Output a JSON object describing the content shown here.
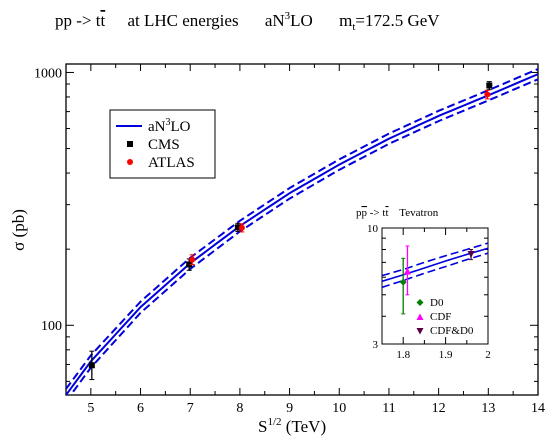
{
  "title": {
    "process": "pp -> t",
    "process_bar": "t",
    "energies": "at  LHC  energies",
    "order_pre": "aN",
    "order_sup": "3",
    "order_post": "LO",
    "mass_pre": "m",
    "mass_sub": "t",
    "mass_post": "=172.5 GeV"
  },
  "colors": {
    "theory": "#0000dd",
    "cms": "#000000",
    "atlas": "#ff0000",
    "d0": "#008000",
    "cdf": "#ff00ff",
    "cdfd0": "#550044"
  },
  "chart_data": [
    {
      "type": "line",
      "xlabel_pre": "S",
      "xlabel_sup": "1/2",
      "xlabel_post": " (TeV)",
      "ylabel": "σ (pb)",
      "xlim": [
        4.5,
        14
      ],
      "ylim": [
        53,
        1080
      ],
      "yscale": "log",
      "x_ticks": [
        5,
        6,
        7,
        8,
        9,
        10,
        11,
        12,
        13,
        14
      ],
      "x_tick_labels": [
        "5",
        "6",
        "7",
        "8",
        "9",
        "10",
        "11",
        "12",
        "13",
        "14"
      ],
      "y_ticks": [
        100,
        1000
      ],
      "y_tick_labels": [
        "100",
        "1000"
      ],
      "legend": {
        "position": "upper-left",
        "entries": [
          {
            "label_pre": "aN",
            "label_sup": "3",
            "label_post": "LO",
            "marker": "line"
          },
          {
            "label_pre": "CMS",
            "label_sup": "",
            "label_post": "",
            "marker": "square"
          },
          {
            "label_pre": "ATLAS",
            "label_sup": "",
            "label_post": "",
            "marker": "circle"
          }
        ]
      },
      "theory": {
        "x": [
          4.5,
          5,
          6,
          7,
          8,
          9,
          10,
          11,
          12,
          13,
          14
        ],
        "central": [
          53,
          72,
          118,
          176,
          247,
          333,
          432,
          547,
          673,
          812,
          985
        ],
        "upper": [
          56,
          76,
          124,
          185,
          259,
          349,
          453,
          573,
          705,
          850,
          1032
        ],
        "lower": [
          50,
          68,
          112,
          167,
          235,
          317,
          412,
          522,
          642,
          775,
          940
        ]
      },
      "series": [
        {
          "name": "CMS",
          "marker": "square",
          "points": [
            {
              "x": 5.02,
              "y": 69.5,
              "lo": 61,
              "hi": 79
            },
            {
              "x": 6.98,
              "y": 174,
              "lo": 165,
              "hi": 183
            },
            {
              "x": 7.96,
              "y": 244,
              "lo": 235,
              "hi": 253
            },
            {
              "x": 13.02,
              "y": 888,
              "lo": 855,
              "hi": 920
            }
          ]
        },
        {
          "name": "ATLAS",
          "marker": "circle",
          "points": [
            {
              "x": 7.04,
              "y": 182,
              "lo": 174,
              "hi": 190
            },
            {
              "x": 8.04,
              "y": 243,
              "lo": 234,
              "hi": 252
            },
            {
              "x": 12.98,
              "y": 818,
              "lo": 786,
              "hi": 850
            }
          ]
        }
      ]
    },
    {
      "type": "line",
      "title_pre": "p",
      "title_bar": "p",
      "title_mid": " -> t",
      "title_bar2": "t",
      "title_post": "    Tevatron",
      "xlim": [
        1.75,
        2.0
      ],
      "ylim": [
        3,
        10
      ],
      "yscale": "log",
      "x_ticks": [
        1.8,
        1.9,
        2.0
      ],
      "x_tick_labels": [
        "1.8",
        "1.9",
        "2"
      ],
      "y_ticks": [
        3,
        10
      ],
      "y_tick_labels": [
        "3",
        "10"
      ],
      "theory": {
        "x": [
          1.75,
          1.8,
          1.85,
          1.9,
          1.95,
          2.0
        ],
        "central": [
          5.75,
          6.15,
          6.6,
          7.1,
          7.6,
          8.1
        ],
        "upper": [
          6.1,
          6.5,
          7.0,
          7.5,
          8.0,
          8.55
        ],
        "lower": [
          5.4,
          5.8,
          6.25,
          6.7,
          7.2,
          7.7
        ]
      },
      "legend": {
        "position": "lower-right",
        "entries": [
          {
            "label": "D0",
            "marker": "diamond"
          },
          {
            "label": "CDF",
            "marker": "triangle-up"
          },
          {
            "label": "CDF&D0",
            "marker": "triangle-down"
          }
        ]
      },
      "series": [
        {
          "name": "D0",
          "marker": "diamond",
          "points": [
            {
              "x": 1.8,
              "y": 5.7,
              "lo": 4.1,
              "hi": 7.3
            }
          ]
        },
        {
          "name": "CDF",
          "marker": "triangle-up",
          "points": [
            {
              "x": 1.81,
              "y": 6.4,
              "lo": 5.0,
              "hi": 8.3
            }
          ]
        },
        {
          "name": "CDF&D0",
          "marker": "triangle-down",
          "points": [
            {
              "x": 1.96,
              "y": 7.6,
              "lo": 7.2,
              "hi": 8.0
            }
          ]
        }
      ]
    }
  ]
}
